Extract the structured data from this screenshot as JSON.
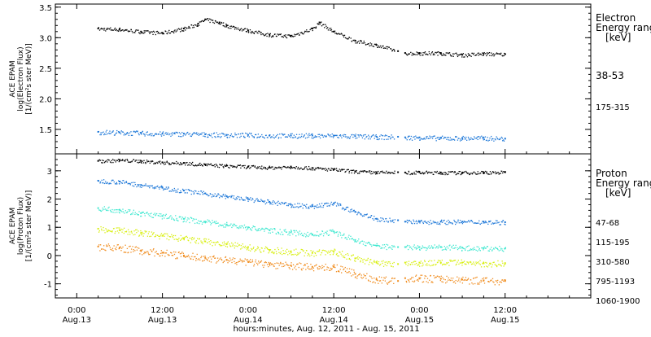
{
  "chart_data": [
    {
      "type": "scatter",
      "title": "",
      "ylabel_lines": [
        "ACE EPAM",
        "log(Electron Flux)",
        "[1/(cm²s ster MeV)]"
      ],
      "ylim": [
        1.1,
        3.55
      ],
      "yticks": [
        1.5,
        2.0,
        2.5,
        3.0,
        3.5
      ],
      "ytick_labels": [
        "1.5",
        "2.0",
        "2.5",
        "3.0",
        "3.5"
      ],
      "legend_title": [
        "Electron",
        "Energy ranges",
        "[keV]"
      ],
      "series": [
        {
          "name": "38-53",
          "color": "#000000",
          "x": [
            3,
            6,
            9,
            12,
            15,
            17,
            18,
            20,
            21,
            24,
            27,
            30,
            33,
            34,
            36,
            39,
            42,
            45,
            46,
            48,
            51,
            54,
            57,
            60
          ],
          "y": [
            3.15,
            3.14,
            3.1,
            3.08,
            3.15,
            3.23,
            3.3,
            3.25,
            3.2,
            3.12,
            3.05,
            3.03,
            3.15,
            3.25,
            3.1,
            2.95,
            2.88,
            2.78,
            2.75,
            2.75,
            2.75,
            2.72,
            2.74,
            2.73
          ]
        },
        {
          "name": "175-315",
          "color": "#1e78d8",
          "x": [
            3,
            6,
            9,
            12,
            15,
            18,
            21,
            24,
            27,
            30,
            33,
            36,
            39,
            42,
            45,
            46,
            48,
            51,
            54,
            57,
            60
          ],
          "y": [
            1.46,
            1.45,
            1.44,
            1.43,
            1.43,
            1.42,
            1.41,
            1.41,
            1.4,
            1.4,
            1.4,
            1.4,
            1.39,
            1.38,
            1.38,
            1.37,
            1.37,
            1.36,
            1.36,
            1.36,
            1.35
          ]
        }
      ]
    },
    {
      "type": "scatter",
      "title": "",
      "ylabel_lines": [
        "ACE EPAM",
        "log(Proton Flux)",
        "[1/(cm²s ster MeV)]"
      ],
      "ylim": [
        -1.5,
        3.6
      ],
      "yticks": [
        -1,
        0,
        1,
        2,
        3
      ],
      "ytick_labels": [
        "-1",
        "0",
        "1",
        "2",
        "3"
      ],
      "legend_title": [
        "Proton",
        "Energy ranges",
        "[keV]"
      ],
      "series": [
        {
          "name": "47-68",
          "color": "#000000",
          "x": [
            3,
            6,
            9,
            12,
            15,
            18,
            21,
            24,
            27,
            30,
            33,
            36,
            39,
            42,
            45,
            46,
            48,
            51,
            54,
            57,
            60
          ],
          "y": [
            3.35,
            3.38,
            3.35,
            3.3,
            3.28,
            3.22,
            3.18,
            3.15,
            3.12,
            3.15,
            3.1,
            3.05,
            2.98,
            2.95,
            2.95,
            2.94,
            2.95,
            2.94,
            2.94,
            2.95,
            2.95
          ]
        },
        {
          "name": "115-195",
          "color": "#1e78d8",
          "x": [
            3,
            6,
            9,
            12,
            15,
            18,
            21,
            24,
            27,
            30,
            33,
            36,
            39,
            42,
            45,
            46,
            48,
            51,
            54,
            57,
            60
          ],
          "y": [
            2.65,
            2.62,
            2.5,
            2.4,
            2.3,
            2.2,
            2.1,
            2.0,
            1.9,
            1.8,
            1.75,
            1.85,
            1.55,
            1.3,
            1.25,
            1.2,
            1.2,
            1.2,
            1.2,
            1.2,
            1.18
          ]
        },
        {
          "name": "310-580",
          "color": "#40e8d0",
          "x": [
            3,
            6,
            9,
            12,
            15,
            18,
            21,
            24,
            27,
            30,
            33,
            36,
            39,
            42,
            45,
            46,
            48,
            51,
            54,
            57,
            60
          ],
          "y": [
            1.68,
            1.62,
            1.5,
            1.4,
            1.3,
            1.2,
            1.1,
            1.0,
            0.9,
            0.82,
            0.75,
            0.85,
            0.55,
            0.35,
            0.3,
            0.3,
            0.3,
            0.3,
            0.28,
            0.26,
            0.25
          ]
        },
        {
          "name": "795-1193",
          "color": "#d8ef10",
          "x": [
            3,
            6,
            9,
            12,
            15,
            18,
            21,
            24,
            27,
            30,
            33,
            36,
            39,
            42,
            45,
            46,
            48,
            51,
            54,
            57,
            60
          ],
          "y": [
            0.95,
            0.9,
            0.8,
            0.7,
            0.6,
            0.5,
            0.4,
            0.3,
            0.2,
            0.15,
            0.1,
            0.15,
            -0.1,
            -0.25,
            -0.3,
            -0.25,
            -0.25,
            -0.25,
            -0.25,
            -0.27,
            -0.28
          ]
        },
        {
          "name": "1060-1900",
          "color": "#f08c1e",
          "x": [
            3,
            6,
            9,
            12,
            15,
            18,
            21,
            24,
            27,
            30,
            33,
            36,
            39,
            42,
            45,
            46,
            48,
            51,
            54,
            57,
            60
          ],
          "y": [
            0.32,
            0.28,
            0.18,
            0.1,
            0.0,
            -0.08,
            -0.15,
            -0.22,
            -0.3,
            -0.35,
            -0.4,
            -0.4,
            -0.65,
            -0.85,
            -0.9,
            -0.8,
            -0.8,
            -0.82,
            -0.85,
            -0.88,
            -0.9
          ]
        }
      ]
    }
  ],
  "x_axis": {
    "xlim": [
      -3,
      72
    ],
    "ticks": [
      0,
      12,
      24,
      36,
      48,
      60
    ],
    "tick_labels": [
      {
        "time": "0:00",
        "date": "Aug.13"
      },
      {
        "time": "12:00",
        "date": "Aug.13"
      },
      {
        "time": "0:00",
        "date": "Aug.14"
      },
      {
        "time": "12:00",
        "date": "Aug.14"
      },
      {
        "time": "0:00",
        "date": "Aug.15"
      },
      {
        "time": "12:00",
        "date": "Aug.15"
      }
    ],
    "xlabel": "hours:minutes, Aug. 12, 2011 - Aug. 15, 2011",
    "data_gap": [
      44.5,
      46.0
    ]
  }
}
